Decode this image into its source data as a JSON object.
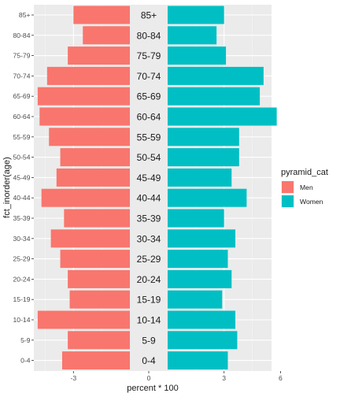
{
  "chart_data": {
    "type": "bar",
    "orientation": "horizontal",
    "subtype": "population-pyramid",
    "xlabel": "percent * 100",
    "ylabel": "fct_inorder(age)",
    "categories": [
      "0-4",
      "5-9",
      "10-14",
      "15-19",
      "20-24",
      "25-29",
      "30-34",
      "35-39",
      "40-44",
      "45-49",
      "50-54",
      "55-59",
      "60-64",
      "65-69",
      "70-74",
      "75-79",
      "80-84",
      "85+"
    ],
    "series": [
      {
        "name": "Men",
        "color": "#F8766D",
        "values": [
          -3.6,
          -3.3,
          -4.9,
          -3.2,
          -3.3,
          -3.7,
          -4.2,
          -3.5,
          -4.7,
          -3.9,
          -3.7,
          -4.3,
          -4.8,
          -4.9,
          -4.4,
          -3.3,
          -2.5,
          -3.0
        ]
      },
      {
        "name": "Women",
        "color": "#00BFC4",
        "values": [
          3.2,
          3.7,
          3.6,
          2.9,
          3.4,
          3.2,
          3.6,
          3.0,
          4.2,
          3.4,
          3.8,
          3.8,
          5.8,
          4.9,
          5.1,
          3.1,
          2.6,
          3.0
        ]
      }
    ],
    "xlim": [
      -5.1,
      6.0
    ],
    "xticks": [
      -3,
      0,
      3,
      6
    ],
    "grid": true,
    "legend": {
      "title": "pyramid_cat",
      "position": "right",
      "entries": [
        "Men",
        "Women"
      ]
    }
  }
}
